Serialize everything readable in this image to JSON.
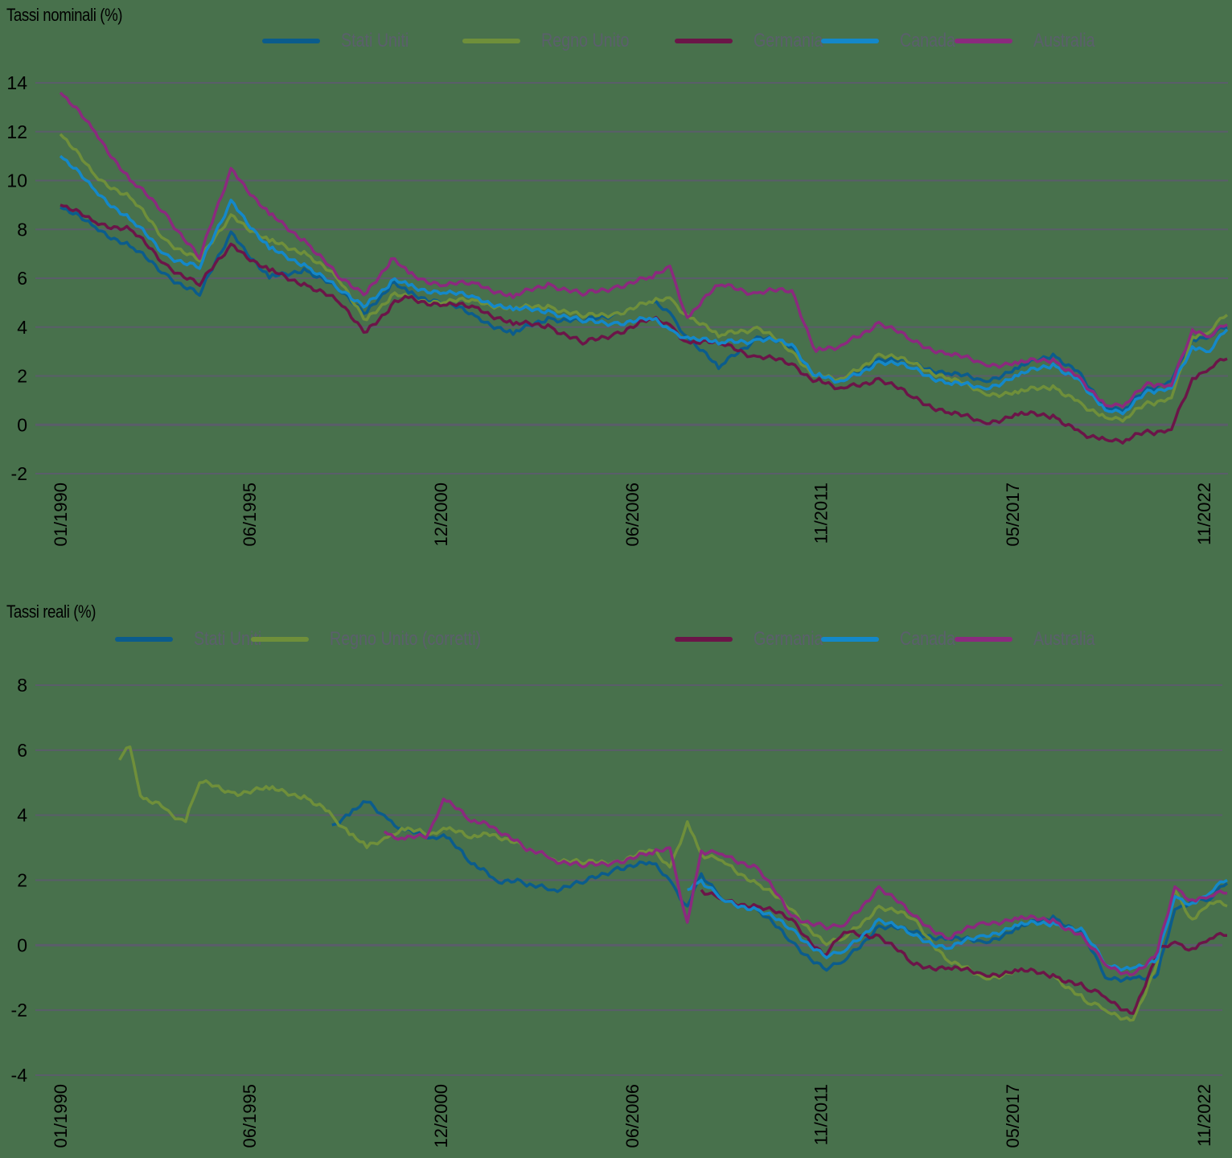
{
  "chart_data": [
    {
      "type": "line",
      "title": "Tassi nominali (%)",
      "xlabel": "",
      "ylabel": "",
      "ylim": [
        -2,
        14
      ],
      "yticks": [
        14,
        12,
        10,
        8,
        6,
        4,
        2,
        0,
        -2
      ],
      "xtick_labels": [
        "01/1990",
        "06/1995",
        "12/2000",
        "06/2006",
        "11/2011",
        "05/2017",
        "11/2022"
      ],
      "grid": true,
      "legend_position": "top",
      "x": [
        1990,
        1991,
        1992,
        1993,
        1994,
        1994.9,
        1996,
        1997,
        1998,
        1998.8,
        1999.5,
        2000,
        2001,
        2002,
        2003,
        2004,
        2005,
        2006,
        2007,
        2007.5,
        2008,
        2008.9,
        2010,
        2011,
        2011.7,
        2012.5,
        2013.5,
        2014.5,
        2015.5,
        2016.5,
        2017.5,
        2018.5,
        2019.3,
        2020,
        2020.6,
        2021.3,
        2021.9,
        2022.5,
        2023,
        2023.5
      ],
      "series": [
        {
          "name": "Stati Uniti",
          "color": "#0b5c8c",
          "values": [
            8.9,
            8.1,
            7.3,
            6.2,
            5.3,
            7.9,
            6.0,
            6.4,
            5.5,
            4.6,
            5.8,
            5.4,
            5.0,
            4.4,
            3.7,
            4.4,
            4.2,
            4.6,
            5.0,
            4.6,
            3.6,
            2.3,
            3.6,
            3.2,
            2.0,
            1.8,
            2.7,
            2.5,
            2.1,
            1.8,
            2.3,
            2.9,
            2.1,
            0.7,
            0.7,
            1.5,
            1.8,
            3.5,
            3.6,
            4.0
          ]
        },
        {
          "name": "Regno Unito",
          "color": "#6f8f3a",
          "values": [
            11.9,
            10.2,
            9.3,
            7.6,
            6.7,
            8.6,
            7.5,
            7.1,
            5.9,
            4.3,
            5.3,
            5.2,
            5.0,
            5.1,
            4.7,
            4.9,
            4.4,
            4.6,
            5.0,
            5.2,
            4.5,
            3.6,
            4.0,
            3.0,
            2.0,
            1.9,
            2.9,
            2.5,
            1.9,
            1.3,
            1.3,
            1.6,
            0.9,
            0.3,
            0.3,
            0.9,
            1.1,
            3.6,
            3.8,
            4.5
          ]
        },
        {
          "name": "Germania",
          "color": "#6b1548",
          "values": [
            9.0,
            8.3,
            8.0,
            6.6,
            5.7,
            7.4,
            6.3,
            5.8,
            5.0,
            3.8,
            4.9,
            5.2,
            4.9,
            4.8,
            4.1,
            4.1,
            3.3,
            3.8,
            4.3,
            4.1,
            3.4,
            3.3,
            2.8,
            2.5,
            1.8,
            1.5,
            1.9,
            1.1,
            0.5,
            0.1,
            0.4,
            0.4,
            -0.3,
            -0.6,
            -0.6,
            -0.3,
            -0.2,
            1.9,
            2.3,
            2.7
          ]
        },
        {
          "name": "Canada",
          "color": "#1488c9",
          "values": [
            11.0,
            9.6,
            8.4,
            7.0,
            6.4,
            9.2,
            7.2,
            6.6,
            5.5,
            4.9,
            5.9,
            5.7,
            5.4,
            5.2,
            4.7,
            4.7,
            4.2,
            4.2,
            4.3,
            3.9,
            3.6,
            3.3,
            3.5,
            3.3,
            2.0,
            1.8,
            2.6,
            2.3,
            1.7,
            1.5,
            2.0,
            2.5,
            1.8,
            0.6,
            0.6,
            1.4,
            1.5,
            3.2,
            3.0,
            3.9
          ]
        },
        {
          "name": "Australia",
          "color": "#8b2a7e",
          "values": [
            13.6,
            12.0,
            10.0,
            8.7,
            6.8,
            10.5,
            8.6,
            7.6,
            6.0,
            5.4,
            6.8,
            6.2,
            5.7,
            5.8,
            5.2,
            5.8,
            5.3,
            5.7,
            6.0,
            6.5,
            4.4,
            5.7,
            5.4,
            5.5,
            3.0,
            3.3,
            4.2,
            3.4,
            2.9,
            2.5,
            2.5,
            2.7,
            1.9,
            0.8,
            0.9,
            1.7,
            1.6,
            3.9,
            3.6,
            4.1
          ]
        }
      ]
    },
    {
      "type": "line",
      "title": "Tassi reali (%)",
      "xlabel": "",
      "ylabel": "",
      "ylim": [
        -4,
        8
      ],
      "yticks": [
        8,
        6,
        4,
        2,
        0,
        -2,
        -4
      ],
      "xtick_labels": [
        "01/1990",
        "06/1995",
        "12/2000",
        "06/2006",
        "11/2011",
        "05/2017",
        "11/2022"
      ],
      "grid": true,
      "legend_position": "top",
      "x": [
        1991.7,
        1992,
        1992.3,
        1993,
        1993.6,
        1994,
        1995,
        1996,
        1997,
        1997.8,
        1998.3,
        1998.8,
        1999.3,
        1999.8,
        2000.5,
        2001,
        2001.8,
        2002.5,
        2003.3,
        2004,
        2005,
        2006,
        2007,
        2007.5,
        2008,
        2008.4,
        2009,
        2010,
        2011,
        2011.9,
        2012.5,
        2013.5,
        2014.5,
        2015.5,
        2016.5,
        2017.5,
        2018.5,
        2019.4,
        2020,
        2020.8,
        2021.5,
        2022,
        2022.5,
        2023,
        2023.5
      ],
      "series": [
        {
          "name": "Stati Uniti",
          "color": "#0b5c8c",
          "values": [
            null,
            null,
            null,
            null,
            null,
            null,
            null,
            null,
            null,
            3.7,
            4.0,
            4.4,
            4.0,
            3.6,
            3.3,
            3.4,
            2.5,
            2.0,
            1.9,
            1.7,
            1.9,
            2.4,
            2.5,
            2.0,
            1.2,
            2.2,
            1.4,
            1.1,
            0.1,
            -0.7,
            -0.5,
            0.6,
            0.4,
            0.2,
            0.1,
            0.5,
            0.9,
            0.3,
            -1.0,
            -1.0,
            -0.9,
            1.1,
            1.4,
            1.4,
            1.9
          ]
        },
        {
          "name": "Regno Unito (corretti)",
          "color": "#6f8f3a",
          "values": [
            5.7,
            6.1,
            4.6,
            4.2,
            3.8,
            5.0,
            4.7,
            4.8,
            4.6,
            4.0,
            3.4,
            3.0,
            3.3,
            3.6,
            3.4,
            3.6,
            3.3,
            3.4,
            3.0,
            2.7,
            2.5,
            2.6,
            2.9,
            2.4,
            3.8,
            2.8,
            2.6,
            1.9,
            1.1,
            0.1,
            0.2,
            1.2,
            0.8,
            -0.5,
            -1.0,
            -0.8,
            -0.9,
            -1.7,
            -2.0,
            -2.3,
            -0.5,
            1.7,
            0.8,
            1.3,
            1.2
          ]
        },
        {
          "name": "Germania",
          "color": "#6b1548",
          "values": [
            null,
            null,
            null,
            null,
            null,
            null,
            null,
            null,
            null,
            null,
            null,
            null,
            null,
            null,
            null,
            null,
            null,
            null,
            null,
            null,
            null,
            null,
            null,
            null,
            null,
            1.7,
            1.4,
            1.2,
            0.8,
            -0.3,
            0.4,
            0.3,
            -0.6,
            -0.7,
            -0.9,
            -0.8,
            -0.9,
            -1.3,
            -1.6,
            -2.1,
            -0.2,
            0.1,
            -0.1,
            0.2,
            0.3
          ]
        },
        {
          "name": "Canada",
          "color": "#1488c9",
          "values": [
            null,
            null,
            null,
            null,
            null,
            null,
            null,
            null,
            null,
            null,
            null,
            null,
            null,
            null,
            null,
            null,
            null,
            null,
            null,
            null,
            null,
            null,
            null,
            null,
            1.7,
            2.0,
            1.4,
            1.1,
            0.5,
            -0.3,
            -0.2,
            0.8,
            0.3,
            -0.1,
            0.3,
            0.6,
            0.7,
            0.4,
            -0.6,
            -0.7,
            -0.4,
            1.5,
            1.3,
            1.6,
            2.0
          ]
        },
        {
          "name": "Australia",
          "color": "#8b2a7e",
          "values": [
            null,
            null,
            null,
            null,
            null,
            null,
            null,
            null,
            null,
            null,
            null,
            null,
            3.5,
            3.3,
            3.3,
            4.5,
            3.8,
            3.6,
            3.0,
            2.7,
            2.4,
            2.6,
            2.8,
            3.0,
            0.7,
            2.9,
            2.8,
            2.4,
            0.9,
            0.6,
            0.6,
            1.8,
            0.9,
            0.2,
            0.7,
            0.8,
            0.8,
            0.2,
            -0.6,
            -0.9,
            -0.2,
            1.8,
            1.4,
            1.5,
            1.6
          ]
        }
      ]
    }
  ],
  "top_chart": {
    "title": "Tassi nominali (%)",
    "legend": [
      "Stati Uniti",
      "Regno Unito",
      "Germania",
      "Canada",
      "Australia"
    ]
  },
  "bottom_chart": {
    "title": "Tassi reali (%)",
    "legend": [
      "Stati Uniti",
      "Regno Unito (corretti)",
      "Germania",
      "Canada",
      "Australia"
    ]
  }
}
